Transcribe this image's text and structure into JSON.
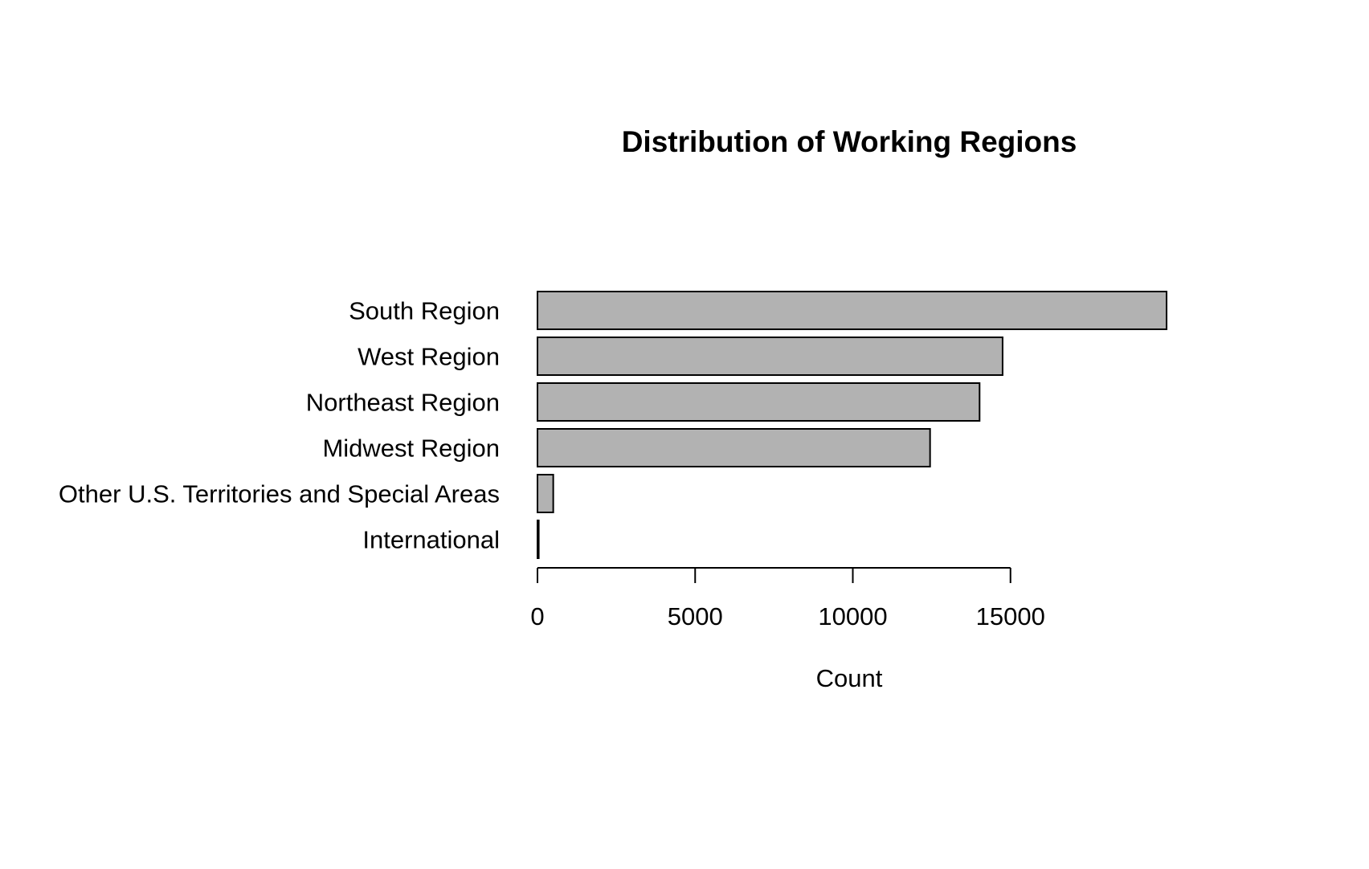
{
  "chart_data": {
    "type": "bar",
    "orientation": "horizontal",
    "title": "Distribution of Working Regions",
    "xlabel": "Count",
    "ylabel": "",
    "categories": [
      "South Region",
      "West Region",
      "Northeast Region",
      "Midwest Region",
      "Other U.S. Territories and Special Areas",
      "International"
    ],
    "values": [
      19950,
      14750,
      14020,
      12450,
      500,
      40
    ],
    "xlim": [
      0,
      20000
    ],
    "xticks": [
      0,
      5000,
      10000,
      15000
    ],
    "tick_labels": [
      "0",
      "5000",
      "10000",
      "15000"
    ],
    "grid": false,
    "legend": "none",
    "bar_color": "#b2b2b2",
    "bar_edge_color": "#000000"
  }
}
